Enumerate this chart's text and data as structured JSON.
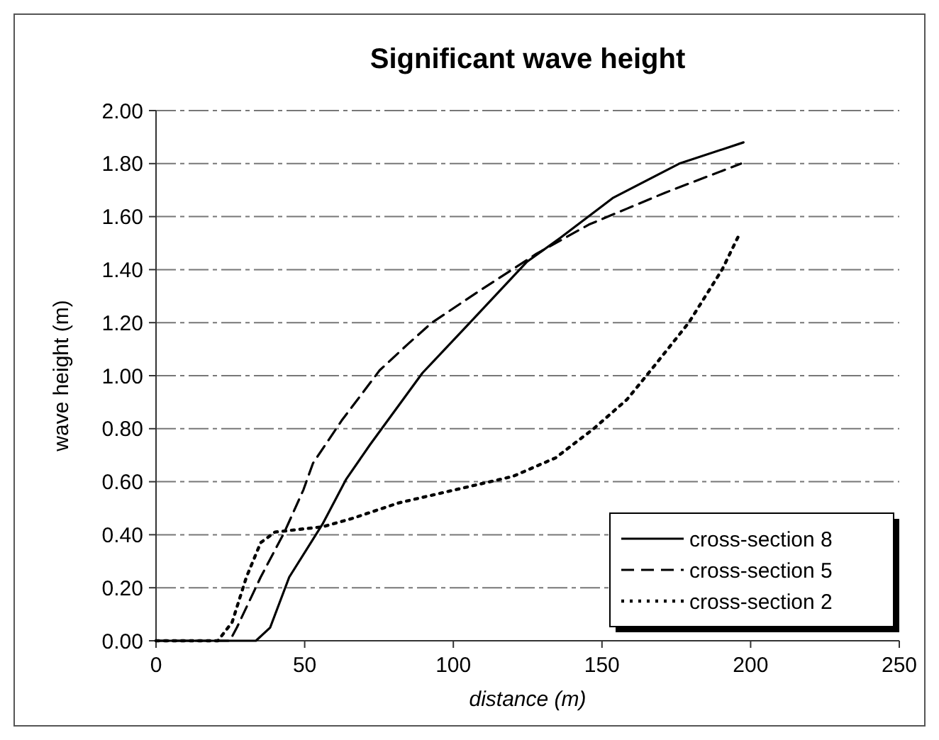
{
  "chart_data": {
    "type": "line",
    "title": "Significant wave height",
    "xlabel": "distance (m)",
    "ylabel": "wave height (m)",
    "xlim": [
      0,
      250
    ],
    "xticks": [
      0,
      50,
      100,
      150,
      200,
      250
    ],
    "ylim": [
      0,
      2
    ],
    "yticks": [
      {
        "value": 0,
        "label": "0.00"
      },
      {
        "value": 0.2,
        "label": "0.20"
      },
      {
        "value": 0.4,
        "label": "0.40"
      },
      {
        "value": 0.6,
        "label": "0.60"
      },
      {
        "value": 0.8,
        "label": "0.80"
      },
      {
        "value": 1,
        "label": "1.00"
      },
      {
        "value": 1.2,
        "label": "1.20"
      },
      {
        "value": 1.4,
        "label": "1.40"
      },
      {
        "value": 1.6,
        "label": "1.60"
      },
      {
        "value": 1.8,
        "label": "1.80"
      },
      {
        "value": 2,
        "label": "2.00"
      }
    ],
    "grid": "y",
    "legend": "bottom right",
    "series": [
      {
        "name": "cross-section 8",
        "color": "#000000",
        "line_style": "solid",
        "x": [
          0,
          33.6,
          38.4,
          44.8,
          56,
          64,
          72,
          89.6,
          105.6,
          124.8,
          136,
          153.6,
          176,
          197.6
        ],
        "values": [
          0,
          0,
          0.05,
          0.24,
          0.44,
          0.61,
          0.74,
          1.01,
          1.2,
          1.43,
          1.52,
          1.67,
          1.8,
          1.88
        ]
      },
      {
        "name": "cross-section 5",
        "color": "#000000",
        "line_style": "dashed",
        "x": [
          0,
          24.8,
          27.2,
          35.2,
          43.2,
          49.6,
          52.8,
          62.4,
          75.2,
          84.8,
          92.8,
          108.8,
          128,
          145.6,
          158.4,
          171.2,
          196.8
        ],
        "values": [
          0,
          0,
          0.05,
          0.24,
          0.41,
          0.57,
          0.67,
          0.83,
          1.02,
          1.12,
          1.2,
          1.32,
          1.46,
          1.57,
          1.63,
          1.69,
          1.8
        ]
      },
      {
        "name": "cross-section 2",
        "color": "#000000",
        "line_style": "dotted",
        "x": [
          0,
          20.8,
          25.6,
          30.4,
          35.2,
          40,
          56,
          65.6,
          81.6,
          100.8,
          120,
          134.4,
          147.2,
          158.4,
          166.4,
          179.2,
          190.4,
          196.5
        ],
        "values": [
          0,
          0,
          0.07,
          0.24,
          0.37,
          0.41,
          0.43,
          0.46,
          0.52,
          0.57,
          0.62,
          0.69,
          0.8,
          0.91,
          1.02,
          1.2,
          1.4,
          1.54
        ]
      }
    ]
  }
}
